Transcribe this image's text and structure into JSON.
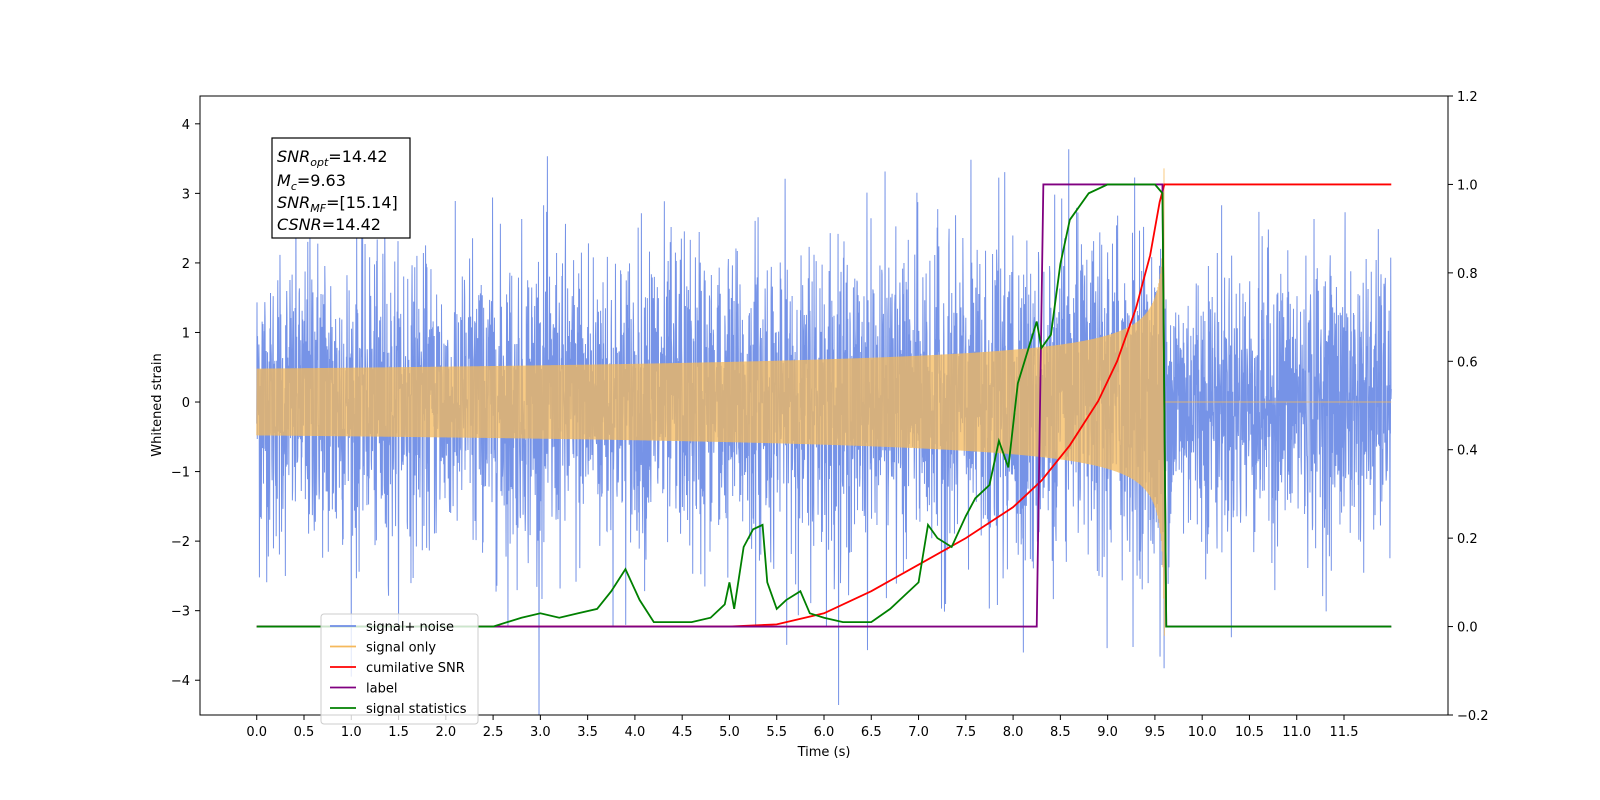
{
  "chart_data": {
    "type": "line",
    "xlabel": "Time (s)",
    "ylabel_left": "Whitened strain",
    "ylabel_right": "",
    "xlim": [
      -0.6,
      12.6
    ],
    "ylim_left": [
      -4.5,
      4.4
    ],
    "ylim_right": [
      -0.2,
      1.2
    ],
    "x_ticks": [
      "0.0",
      "0.5",
      "1.0",
      "1.5",
      "2.0",
      "2.5",
      "3.0",
      "3.5",
      "4.0",
      "4.5",
      "5.0",
      "5.5",
      "6.0",
      "6.5",
      "7.0",
      "7.5",
      "8.0",
      "8.5",
      "9.0",
      "9.5",
      "10.0",
      "10.5",
      "11.0",
      "11.5"
    ],
    "y_ticks_left": [
      "4",
      "3",
      "2",
      "1",
      "0",
      "−1",
      "−2",
      "−3",
      "−4"
    ],
    "y_ticks_right": [
      "1.2",
      "1.0",
      "0.8",
      "0.6",
      "0.4",
      "0.2",
      "0.0",
      "−0.2"
    ],
    "grid": false,
    "legend_location": "lower-left",
    "annotation": {
      "snr_opt": {
        "base": "SNR",
        "sub": "opt",
        "value": "=14.42"
      },
      "mc": {
        "base": "M",
        "sub": "c",
        "value": "=9.63"
      },
      "snr_mf": {
        "base": "SNR",
        "sub": "MF",
        "value": "=[15.14]"
      },
      "csnr": {
        "base": "CSNR",
        "sub": "",
        "value": "=14.42"
      }
    },
    "noise_params": {
      "x_start": 0.0,
      "x_end": 12.0,
      "sigma": 1.0
    },
    "signal_params": {
      "x_start": 0.0,
      "merger_time": 9.6,
      "peak_amplitude": 3.5
    },
    "series": [
      {
        "name": "signal+ noise",
        "color": "#6f8de6",
        "axis": "left",
        "kind": "noise"
      },
      {
        "name": "signal only",
        "color": "#f5b95b",
        "axis": "left",
        "kind": "chirp"
      },
      {
        "name": "cumilative SNR",
        "color": "#ff0000",
        "axis": "right",
        "kind": "curve",
        "x": [
          0.0,
          5.0,
          5.5,
          6.0,
          6.5,
          7.0,
          7.5,
          8.0,
          8.3,
          8.6,
          8.9,
          9.1,
          9.3,
          9.45,
          9.55,
          9.6,
          12.0
        ],
        "y": [
          0.0,
          0.0,
          0.005,
          0.03,
          0.08,
          0.14,
          0.2,
          0.27,
          0.33,
          0.41,
          0.51,
          0.6,
          0.72,
          0.84,
          0.96,
          1.0,
          1.0
        ]
      },
      {
        "name": "label",
        "color": "#800080",
        "axis": "right",
        "kind": "curve",
        "x": [
          0.0,
          8.25,
          8.32,
          9.58,
          9.62,
          12.0
        ],
        "y": [
          0.0,
          0.0,
          1.0,
          1.0,
          0.0,
          0.0
        ]
      },
      {
        "name": "signal statistics",
        "color": "#008000",
        "axis": "right",
        "kind": "curve",
        "x": [
          0.0,
          2.5,
          2.8,
          3.0,
          3.2,
          3.4,
          3.6,
          3.75,
          3.9,
          4.05,
          4.2,
          4.4,
          4.6,
          4.8,
          4.95,
          5.0,
          5.05,
          5.15,
          5.25,
          5.35,
          5.4,
          5.5,
          5.6,
          5.75,
          5.85,
          6.0,
          6.2,
          6.5,
          6.7,
          6.85,
          7.0,
          7.1,
          7.2,
          7.35,
          7.5,
          7.6,
          7.75,
          7.85,
          7.95,
          8.05,
          8.15,
          8.25,
          8.3,
          8.4,
          8.5,
          8.6,
          8.8,
          9.0,
          9.2,
          9.5,
          9.58,
          9.62,
          12.0
        ],
        "y": [
          0.0,
          0.0,
          0.02,
          0.03,
          0.02,
          0.03,
          0.04,
          0.08,
          0.13,
          0.06,
          0.01,
          0.01,
          0.01,
          0.02,
          0.05,
          0.1,
          0.04,
          0.18,
          0.22,
          0.23,
          0.1,
          0.04,
          0.06,
          0.08,
          0.03,
          0.02,
          0.01,
          0.01,
          0.04,
          0.07,
          0.1,
          0.23,
          0.2,
          0.18,
          0.25,
          0.29,
          0.32,
          0.42,
          0.36,
          0.55,
          0.62,
          0.69,
          0.63,
          0.66,
          0.82,
          0.92,
          0.98,
          1.0,
          1.0,
          1.0,
          0.98,
          0.0,
          0.0
        ]
      }
    ],
    "legend": [
      {
        "label": "signal+ noise",
        "color": "#6f8de6"
      },
      {
        "label": "signal only",
        "color": "#f5b95b"
      },
      {
        "label": "cumilative SNR",
        "color": "#ff0000"
      },
      {
        "label": "label",
        "color": "#800080"
      },
      {
        "label": "signal statistics",
        "color": "#008000"
      }
    ]
  }
}
